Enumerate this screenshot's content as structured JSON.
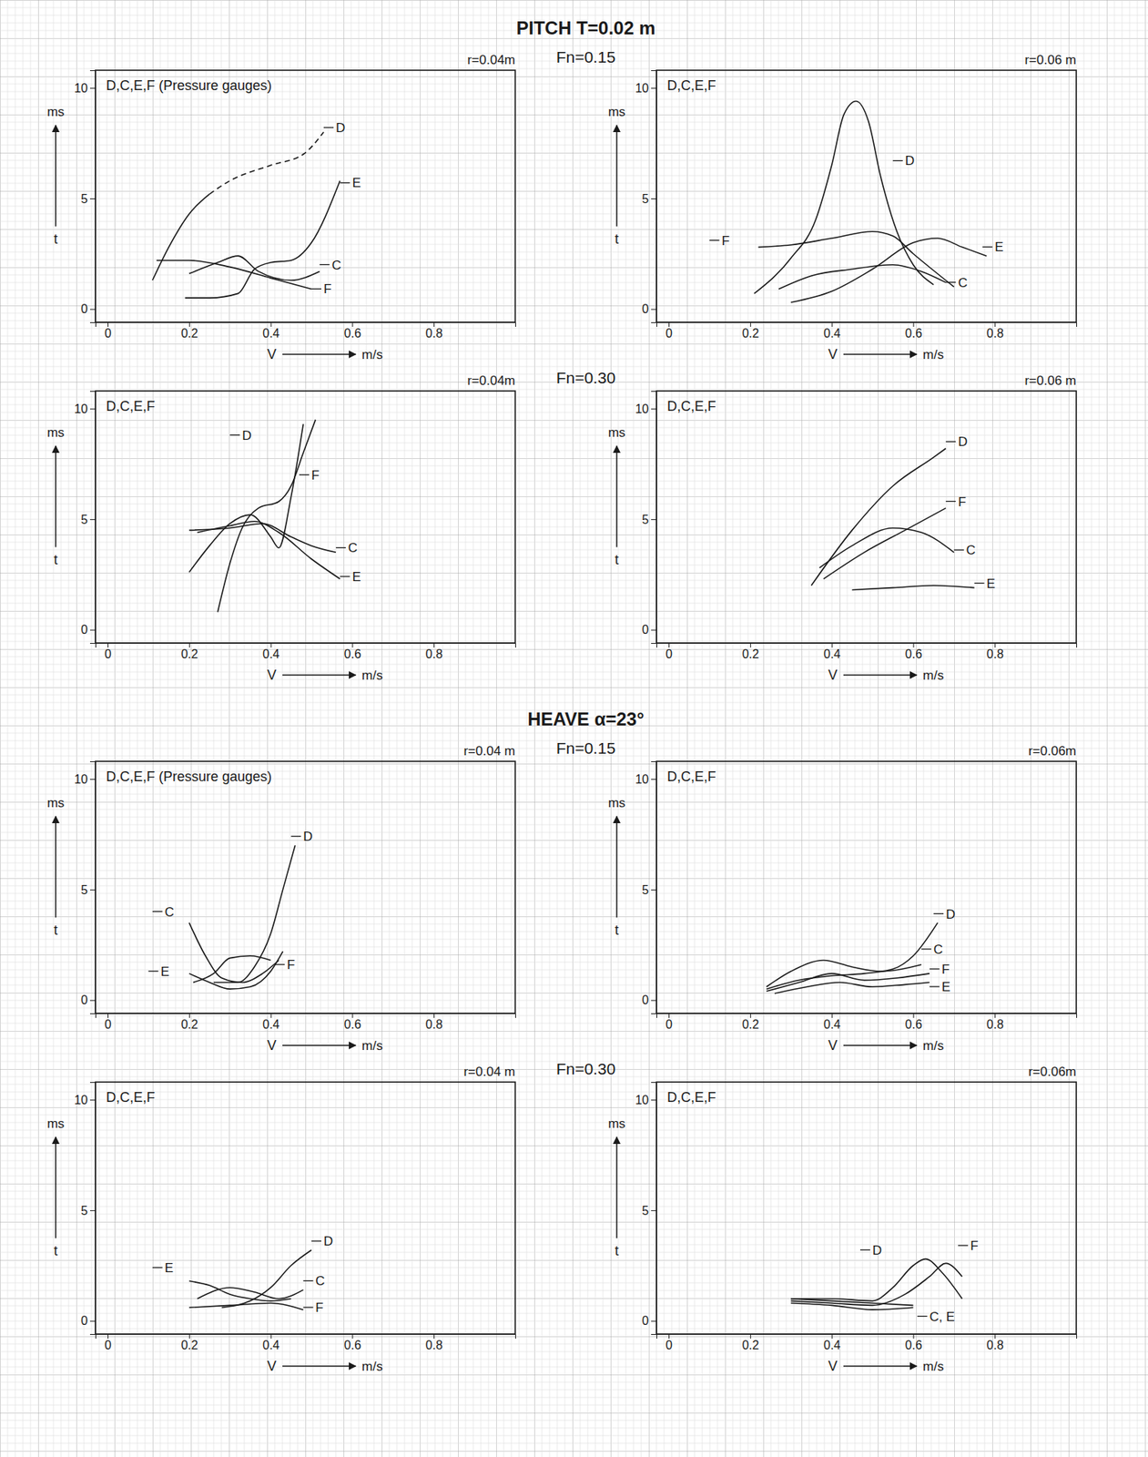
{
  "sections": [
    {
      "title": "PITCH T=0.02 m",
      "rows": [
        {
          "label": "Fn=0.15"
        },
        {
          "label": "Fn=0.30"
        }
      ]
    },
    {
      "title": "HEAVE α=23°",
      "rows": [
        {
          "label": "Fn=0.15"
        },
        {
          "label": "Fn=0.30"
        }
      ]
    }
  ],
  "chart_data": [
    {
      "type": "line",
      "title": "D,C,E,F (Pressure gauges)",
      "subtitle": "r=0.04m",
      "xlabel": "V",
      "xunit": "m/s",
      "ylabel": "ms",
      "ylabel2": "t",
      "xlim": [
        -0.03,
        1.0
      ],
      "xticks": [
        0,
        0.2,
        0.4,
        0.6,
        0.8
      ],
      "ylim": [
        -0.6,
        10.8
      ],
      "yticks": [
        0,
        5,
        10
      ],
      "series": [
        {
          "x": [
            0.11,
            0.15,
            0.2,
            0.25
          ],
          "values": [
            1.3,
            2.8,
            4.3,
            5.2
          ],
          "color": "#1a1a1a",
          "line_style": "solid"
        },
        {
          "x": [
            0.25,
            0.3,
            0.4,
            0.48,
            0.53
          ],
          "values": [
            5.2,
            5.8,
            6.5,
            7.0,
            8.0
          ],
          "color": "#1a1a1a",
          "line_style": "dashed"
        },
        {
          "x": [
            0.19,
            0.25,
            0.32,
            0.36,
            0.4,
            0.45,
            0.5,
            0.57
          ],
          "values": [
            0.5,
            0.5,
            0.7,
            1.8,
            2.1,
            2.2,
            3.0,
            5.8
          ],
          "color": "#1a1a1a",
          "line_style": "solid"
        },
        {
          "x": [
            0.2,
            0.27,
            0.32,
            0.37,
            0.45,
            0.52
          ],
          "values": [
            1.6,
            2.1,
            2.4,
            1.7,
            1.3,
            1.7
          ],
          "color": "#1a1a1a",
          "line_style": "solid"
        },
        {
          "x": [
            0.12,
            0.2,
            0.3,
            0.4,
            0.5
          ],
          "values": [
            2.2,
            2.2,
            1.9,
            1.4,
            0.9
          ],
          "color": "#1a1a1a",
          "line_style": "solid"
        }
      ],
      "annotations": [
        {
          "text": "D",
          "x": 0.56,
          "y": 8.0
        },
        {
          "text": "E",
          "x": 0.6,
          "y": 5.5
        },
        {
          "text": "C",
          "x": 0.55,
          "y": 1.8
        },
        {
          "text": "F",
          "x": 0.53,
          "y": 0.7
        }
      ]
    },
    {
      "type": "line",
      "title": "D,C,E,F",
      "subtitle": "r=0.06 m",
      "xlabel": "V",
      "xunit": "m/s",
      "ylabel": "ms",
      "ylabel2": "t",
      "xlim": [
        -0.03,
        1.0
      ],
      "xticks": [
        0,
        0.2,
        0.4,
        0.6,
        0.8
      ],
      "ylim": [
        -0.6,
        10.8
      ],
      "yticks": [
        0,
        5,
        10
      ],
      "series": [
        {
          "x": [
            0.21,
            0.3,
            0.36,
            0.4,
            0.43,
            0.46,
            0.49,
            0.52,
            0.56,
            0.6,
            0.65
          ],
          "values": [
            0.7,
            2.3,
            4.0,
            6.5,
            8.8,
            9.4,
            8.5,
            6.0,
            3.5,
            2.0,
            1.1
          ],
          "color": "#1a1a1a",
          "line_style": "solid"
        },
        {
          "x": [
            0.22,
            0.3,
            0.4,
            0.5,
            0.55,
            0.6,
            0.7
          ],
          "values": [
            2.8,
            2.9,
            3.2,
            3.5,
            3.3,
            2.5,
            1.0
          ],
          "color": "#1a1a1a",
          "line_style": "solid"
        },
        {
          "x": [
            0.3,
            0.4,
            0.5,
            0.6,
            0.66,
            0.72,
            0.78
          ],
          "values": [
            0.3,
            0.8,
            1.8,
            3.0,
            3.2,
            2.8,
            2.4
          ],
          "color": "#1a1a1a",
          "line_style": "solid"
        },
        {
          "x": [
            0.27,
            0.35,
            0.45,
            0.55,
            0.62,
            0.68
          ],
          "values": [
            0.9,
            1.5,
            1.8,
            2.0,
            1.7,
            1.2
          ],
          "color": "#1a1a1a",
          "line_style": "solid"
        }
      ],
      "annotations": [
        {
          "text": "D",
          "x": 0.58,
          "y": 6.5
        },
        {
          "text": "F",
          "x": 0.13,
          "y": 2.9
        },
        {
          "text": "E",
          "x": 0.8,
          "y": 2.6
        },
        {
          "text": "C",
          "x": 0.71,
          "y": 1.0
        }
      ]
    },
    {
      "type": "line",
      "title": "D,C,E,F",
      "subtitle": "r=0.04m",
      "xlabel": "V",
      "xunit": "m/s",
      "ylabel": "ms",
      "ylabel2": "t",
      "xlim": [
        -0.03,
        1.0
      ],
      "xticks": [
        0,
        0.2,
        0.4,
        0.6,
        0.8
      ],
      "ylim": [
        -0.6,
        10.8
      ],
      "yticks": [
        0,
        5,
        10
      ],
      "series": [
        {
          "x": [
            0.27,
            0.3,
            0.33,
            0.37,
            0.42,
            0.45,
            0.48,
            0.51
          ],
          "values": [
            0.8,
            3.0,
            4.6,
            5.5,
            5.8,
            6.5,
            8.0,
            9.5
          ],
          "color": "#1a1a1a",
          "line_style": "solid"
        },
        {
          "x": [
            0.2,
            0.25,
            0.3,
            0.35,
            0.4,
            0.42,
            0.45,
            0.48
          ],
          "values": [
            2.6,
            3.8,
            4.8,
            5.2,
            4.2,
            3.7,
            6.0,
            9.3
          ],
          "color": "#1a1a1a",
          "line_style": "solid"
        },
        {
          "x": [
            0.2,
            0.3,
            0.38,
            0.45,
            0.5,
            0.56
          ],
          "values": [
            4.5,
            4.6,
            4.8,
            4.2,
            3.8,
            3.5
          ],
          "color": "#1a1a1a",
          "line_style": "solid"
        },
        {
          "x": [
            0.22,
            0.3,
            0.36,
            0.42,
            0.5,
            0.57
          ],
          "values": [
            4.4,
            4.7,
            4.9,
            4.4,
            3.2,
            2.3
          ],
          "color": "#1a1a1a",
          "line_style": "solid"
        }
      ],
      "annotations": [
        {
          "text": "D",
          "x": 0.33,
          "y": 8.6
        },
        {
          "text": "F",
          "x": 0.5,
          "y": 6.8
        },
        {
          "text": "C",
          "x": 0.59,
          "y": 3.5
        },
        {
          "text": "E",
          "x": 0.6,
          "y": 2.2
        }
      ]
    },
    {
      "type": "line",
      "title": "D,C,E,F",
      "subtitle": "r=0.06 m",
      "xlabel": "V",
      "xunit": "m/s",
      "ylabel": "ms",
      "ylabel2": "t",
      "xlim": [
        -0.03,
        1.0
      ],
      "xticks": [
        0,
        0.2,
        0.4,
        0.6,
        0.8
      ],
      "ylim": [
        -0.6,
        10.8
      ],
      "yticks": [
        0,
        5,
        10
      ],
      "series": [
        {
          "x": [
            0.35,
            0.45,
            0.55,
            0.65,
            0.68
          ],
          "values": [
            2.0,
            4.5,
            6.5,
            7.8,
            8.2
          ],
          "color": "#1a1a1a",
          "line_style": "solid"
        },
        {
          "x": [
            0.38,
            0.48,
            0.58,
            0.68
          ],
          "values": [
            2.3,
            3.5,
            4.5,
            5.5
          ],
          "color": "#1a1a1a",
          "line_style": "solid"
        },
        {
          "x": [
            0.37,
            0.45,
            0.55,
            0.62,
            0.7
          ],
          "values": [
            2.8,
            3.8,
            4.6,
            4.4,
            3.5
          ],
          "color": "#1a1a1a",
          "line_style": "solid"
        },
        {
          "x": [
            0.45,
            0.55,
            0.65,
            0.75
          ],
          "values": [
            1.8,
            1.9,
            2.0,
            1.9
          ],
          "color": "#1a1a1a",
          "line_style": "solid"
        }
      ],
      "annotations": [
        {
          "text": "D",
          "x": 0.71,
          "y": 8.3
        },
        {
          "text": "F",
          "x": 0.71,
          "y": 5.6
        },
        {
          "text": "C",
          "x": 0.73,
          "y": 3.4
        },
        {
          "text": "E",
          "x": 0.78,
          "y": 1.9
        }
      ]
    },
    {
      "type": "line",
      "title": "D,C,E,F (Pressure gauges)",
      "subtitle": "r=0.04 m",
      "xlabel": "V",
      "xunit": "m/s",
      "ylabel": "ms",
      "ylabel2": "t",
      "xlim": [
        -0.03,
        1.0
      ],
      "xticks": [
        0,
        0.2,
        0.4,
        0.6,
        0.8
      ],
      "ylim": [
        -0.6,
        10.8
      ],
      "yticks": [
        0,
        5,
        10
      ],
      "series": [
        {
          "x": [
            0.26,
            0.32,
            0.36,
            0.4,
            0.43,
            0.46
          ],
          "values": [
            0.8,
            0.8,
            1.5,
            3.0,
            5.0,
            7.0
          ],
          "color": "#1a1a1a",
          "line_style": "solid"
        },
        {
          "x": [
            0.2,
            0.24,
            0.28,
            0.33,
            0.38,
            0.42
          ],
          "values": [
            3.5,
            2.0,
            1.0,
            0.8,
            1.2,
            1.8
          ],
          "color": "#1a1a1a",
          "line_style": "solid"
        },
        {
          "x": [
            0.2,
            0.25,
            0.3,
            0.35,
            0.4,
            0.43
          ],
          "values": [
            1.2,
            0.8,
            0.5,
            0.6,
            1.3,
            2.2
          ],
          "color": "#1a1a1a",
          "line_style": "solid"
        },
        {
          "x": [
            0.21,
            0.26,
            0.3,
            0.35,
            0.4
          ],
          "values": [
            0.8,
            1.2,
            1.9,
            2.0,
            1.8
          ],
          "color": "#1a1a1a",
          "line_style": "solid"
        }
      ],
      "annotations": [
        {
          "text": "D",
          "x": 0.48,
          "y": 7.2
        },
        {
          "text": "C",
          "x": 0.14,
          "y": 3.8
        },
        {
          "text": "E",
          "x": 0.13,
          "y": 1.1
        },
        {
          "text": "F",
          "x": 0.44,
          "y": 1.4
        }
      ]
    },
    {
      "type": "line",
      "title": "D,C,E,F",
      "subtitle": "r=0.06m",
      "xlabel": "V",
      "xunit": "m/s",
      "ylabel": "ms",
      "ylabel2": "t",
      "xlim": [
        -0.03,
        1.0
      ],
      "xticks": [
        0,
        0.2,
        0.4,
        0.6,
        0.8
      ],
      "ylim": [
        -0.6,
        10.8
      ],
      "yticks": [
        0,
        5,
        10
      ],
      "series": [
        {
          "x": [
            0.24,
            0.32,
            0.4,
            0.48,
            0.55,
            0.6,
            0.66
          ],
          "values": [
            0.5,
            0.9,
            1.1,
            1.2,
            1.4,
            2.0,
            3.5
          ],
          "color": "#1a1a1a",
          "line_style": "solid"
        },
        {
          "x": [
            0.24,
            0.3,
            0.38,
            0.45,
            0.52,
            0.62
          ],
          "values": [
            0.6,
            1.3,
            1.8,
            1.5,
            1.3,
            1.6
          ],
          "color": "#1a1a1a",
          "line_style": "solid"
        },
        {
          "x": [
            0.24,
            0.32,
            0.4,
            0.48,
            0.56,
            0.64
          ],
          "values": [
            0.4,
            0.8,
            1.2,
            0.9,
            1.0,
            1.2
          ],
          "color": "#1a1a1a",
          "line_style": "solid"
        },
        {
          "x": [
            0.26,
            0.34,
            0.42,
            0.5,
            0.58,
            0.64
          ],
          "values": [
            0.3,
            0.6,
            0.8,
            0.6,
            0.7,
            0.8
          ],
          "color": "#1a1a1a",
          "line_style": "solid"
        }
      ],
      "annotations": [
        {
          "text": "D",
          "x": 0.68,
          "y": 3.7
        },
        {
          "text": "C",
          "x": 0.65,
          "y": 2.1
        },
        {
          "text": "F",
          "x": 0.67,
          "y": 1.2
        },
        {
          "text": "E",
          "x": 0.67,
          "y": 0.4
        }
      ]
    },
    {
      "type": "line",
      "title": "D,C,E,F",
      "subtitle": "r=0.04 m",
      "xlabel": "V",
      "xunit": "m/s",
      "ylabel": "ms",
      "ylabel2": "t",
      "xlim": [
        -0.03,
        1.0
      ],
      "xticks": [
        0,
        0.2,
        0.4,
        0.6,
        0.8
      ],
      "ylim": [
        -0.6,
        10.8
      ],
      "yticks": [
        0,
        5,
        10
      ],
      "series": [
        {
          "x": [
            0.28,
            0.35,
            0.4,
            0.45,
            0.5
          ],
          "values": [
            0.6,
            0.9,
            1.5,
            2.5,
            3.2
          ],
          "color": "#1a1a1a",
          "line_style": "solid"
        },
        {
          "x": [
            0.2,
            0.25,
            0.3,
            0.35,
            0.4,
            0.45
          ],
          "values": [
            1.8,
            1.6,
            1.2,
            1.0,
            0.9,
            1.0
          ],
          "color": "#1a1a1a",
          "line_style": "solid"
        },
        {
          "x": [
            0.22,
            0.3,
            0.36,
            0.42,
            0.48
          ],
          "values": [
            1.0,
            1.5,
            1.3,
            1.0,
            1.4
          ],
          "color": "#1a1a1a",
          "line_style": "solid"
        },
        {
          "x": [
            0.2,
            0.3,
            0.4,
            0.48
          ],
          "values": [
            0.6,
            0.7,
            0.8,
            0.5
          ],
          "color": "#1a1a1a",
          "line_style": "solid"
        }
      ],
      "annotations": [
        {
          "text": "D",
          "x": 0.53,
          "y": 3.4
        },
        {
          "text": "E",
          "x": 0.14,
          "y": 2.2
        },
        {
          "text": "C",
          "x": 0.51,
          "y": 1.6
        },
        {
          "text": "F",
          "x": 0.51,
          "y": 0.4
        }
      ]
    },
    {
      "type": "line",
      "title": "D,C,E,F",
      "subtitle": "r=0.06m",
      "xlabel": "V",
      "xunit": "m/s",
      "ylabel": "ms",
      "ylabel2": "t",
      "xlim": [
        -0.03,
        1.0
      ],
      "xticks": [
        0,
        0.2,
        0.4,
        0.6,
        0.8
      ],
      "ylim": [
        -0.6,
        10.8
      ],
      "yticks": [
        0,
        5,
        10
      ],
      "series": [
        {
          "x": [
            0.3,
            0.4,
            0.5,
            0.55,
            0.6,
            0.63,
            0.67,
            0.72
          ],
          "values": [
            1.0,
            1.0,
            0.9,
            1.5,
            2.5,
            2.8,
            2.2,
            1.0
          ],
          "color": "#1a1a1a",
          "line_style": "solid"
        },
        {
          "x": [
            0.3,
            0.4,
            0.5,
            0.58,
            0.64,
            0.68,
            0.72
          ],
          "values": [
            0.9,
            0.8,
            0.7,
            1.2,
            2.0,
            2.6,
            2.0
          ],
          "color": "#1a1a1a",
          "line_style": "solid"
        },
        {
          "x": [
            0.3,
            0.4,
            0.5,
            0.6
          ],
          "values": [
            1.0,
            0.9,
            0.8,
            0.7
          ],
          "color": "#1a1a1a",
          "line_style": "solid"
        },
        {
          "x": [
            0.3,
            0.4,
            0.5,
            0.6
          ],
          "values": [
            0.8,
            0.7,
            0.5,
            0.6
          ],
          "color": "#1a1a1a",
          "line_style": "solid"
        }
      ],
      "annotations": [
        {
          "text": "D",
          "x": 0.5,
          "y": 3.0
        },
        {
          "text": "F",
          "x": 0.74,
          "y": 3.2
        },
        {
          "text": "C, E",
          "x": 0.64,
          "y": 0.0
        }
      ]
    }
  ]
}
